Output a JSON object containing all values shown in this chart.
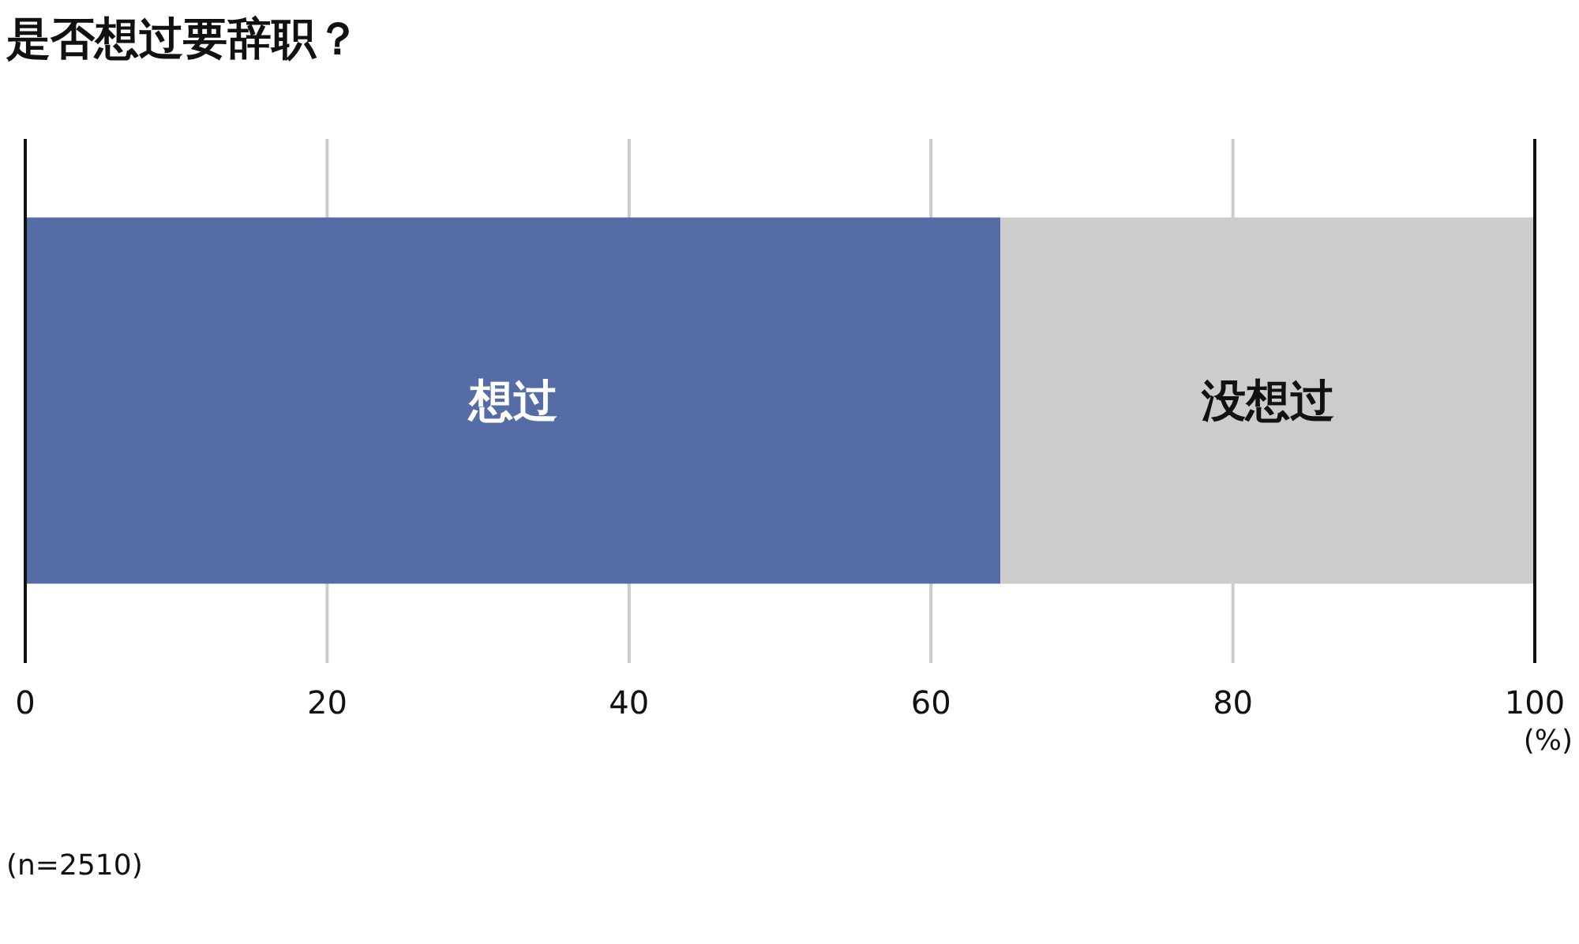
{
  "chart_data": {
    "type": "bar",
    "orientation": "horizontal",
    "stacked": true,
    "title": "是否想过要辞职？",
    "xlabel": "(%)",
    "categories": [
      null
    ],
    "series": [
      {
        "name": "想过",
        "color": "#566ca7",
        "values": [
          64.6
        ]
      },
      {
        "name": "没想过",
        "color": "#cccccc",
        "values": [
          35.4
        ]
      }
    ],
    "xlim": [
      0,
      100
    ],
    "xticks": [
      0,
      20,
      40,
      60,
      80,
      100
    ],
    "grid": "x",
    "tick_labels": "x",
    "annotations": [
      "(n=2510)"
    ]
  }
}
